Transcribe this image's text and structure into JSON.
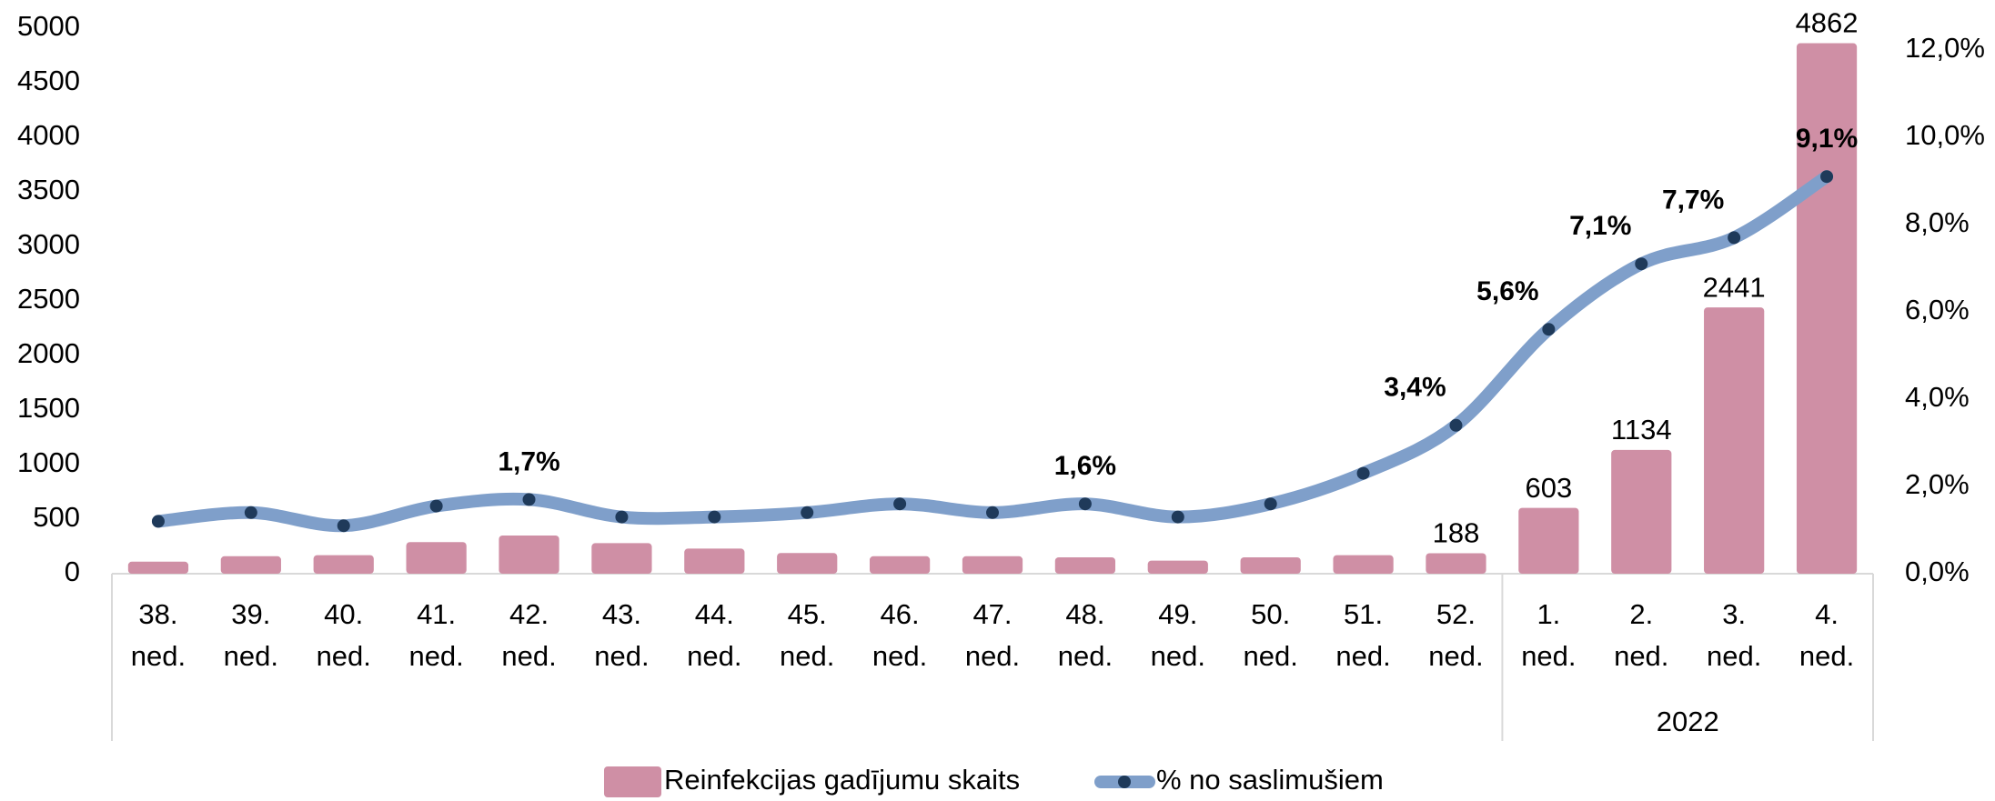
{
  "chart_data": {
    "type": "bar",
    "categories": [
      "38. ned.",
      "39. ned.",
      "40. ned.",
      "41. ned.",
      "42. ned.",
      "43. ned.",
      "44. ned.",
      "45. ned.",
      "46. ned.",
      "47. ned.",
      "48. ned.",
      "49. ned.",
      "50. ned.",
      "51. ned.",
      "52. ned.",
      "1. ned.",
      "2. ned.",
      "3. ned.",
      "4. ned."
    ],
    "category_group": [
      null,
      null,
      null,
      null,
      null,
      null,
      null,
      null,
      null,
      null,
      null,
      null,
      null,
      null,
      null,
      "2022",
      "2022",
      "2022",
      "2022"
    ],
    "series": [
      {
        "name": "Reinfekcijas gadījumu skaits",
        "type": "bar",
        "color": "#cf8fa5",
        "values": [
          110,
          160,
          170,
          290,
          350,
          280,
          230,
          190,
          160,
          160,
          150,
          120,
          150,
          170,
          188,
          603,
          1134,
          2441,
          4862
        ],
        "value_labels": [
          null,
          null,
          null,
          null,
          null,
          null,
          null,
          null,
          null,
          null,
          null,
          null,
          null,
          null,
          "188",
          "603",
          "1134",
          "2441",
          "4862"
        ]
      },
      {
        "name": "% no saslimušiem",
        "type": "line",
        "axis": "y2",
        "color": "#7f9fca",
        "marker_color": "#1f3a5a",
        "values": [
          1.2,
          1.4,
          1.1,
          1.55,
          1.7,
          1.3,
          1.3,
          1.4,
          1.6,
          1.4,
          1.6,
          1.3,
          1.6,
          2.3,
          3.4,
          5.6,
          7.1,
          7.7,
          9.1
        ],
        "value_labels": [
          null,
          null,
          null,
          null,
          "1,7%",
          null,
          null,
          null,
          null,
          null,
          "1,6%",
          null,
          null,
          null,
          "3,4%",
          "5,6%",
          "7,1%",
          "7,7%",
          "9,1%"
        ]
      }
    ],
    "ylim": [
      0,
      5000
    ],
    "yticks": [
      0,
      500,
      1000,
      1500,
      2000,
      2500,
      3000,
      3500,
      4000,
      4500,
      5000
    ],
    "y2lim": [
      0,
      12.5
    ],
    "y2ticks": [
      {
        "value": 0,
        "label": "0,0%"
      },
      {
        "value": 2,
        "label": "2,0%"
      },
      {
        "value": 4,
        "label": "4,0%"
      },
      {
        "value": 6,
        "label": "6,0%"
      },
      {
        "value": 8,
        "label": "8,0%"
      },
      {
        "value": 10,
        "label": "10,0%"
      },
      {
        "value": 12,
        "label": "12,0%"
      }
    ],
    "legend": "bottom"
  }
}
